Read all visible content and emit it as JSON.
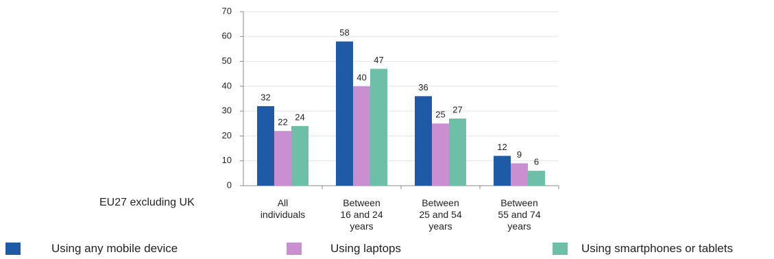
{
  "chart_data": {
    "type": "bar",
    "row_label": "EU27 excluding UK",
    "categories": [
      "All individuals",
      "Between 16 and 24 years",
      "Between 25 and 54 years",
      "Between 55 and 74 years"
    ],
    "series": [
      {
        "name": "Using any mobile device",
        "color": "#1f5aa6",
        "values": [
          32,
          58,
          36,
          12
        ]
      },
      {
        "name": "Using laptops",
        "color": "#c98fd0",
        "values": [
          22,
          40,
          25,
          9
        ]
      },
      {
        "name": "Using smartphones or tablets",
        "color": "#6dbfa8",
        "values": [
          24,
          47,
          27,
          6
        ]
      }
    ],
    "ylim": [
      0,
      70
    ],
    "yticks": [
      0,
      10,
      20,
      30,
      40,
      50,
      60,
      70
    ],
    "grid": true
  }
}
